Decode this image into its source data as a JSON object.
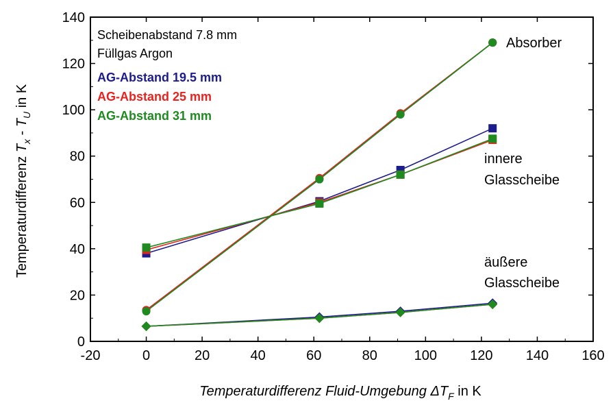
{
  "chart_data": {
    "type": "scatter",
    "xlabel": {
      "prefix": "Temperaturdifferenz Fluid-Umgebung ",
      "symbol": "ΔT",
      "sub": "F",
      "suffix": " in K"
    },
    "ylabel": {
      "prefix": "Temperaturdifferenz ",
      "sym1": "T",
      "sub1": "x",
      "mid": " - ",
      "sym2": "T",
      "sub2": "U",
      "suffix": " in K"
    },
    "xlim": [
      -20,
      160
    ],
    "ylim": [
      0,
      140
    ],
    "xticks": [
      "-20",
      "0",
      "20",
      "40",
      "60",
      "80",
      "100",
      "120",
      "140",
      "160"
    ],
    "yticks": [
      "0",
      "20",
      "40",
      "60",
      "80",
      "100",
      "120",
      "140"
    ],
    "grid": false,
    "annotations": [
      "Scheibenabstand 7.8 mm",
      "Füllgas Argon"
    ],
    "legend": [
      {
        "name": "AG-Abstand 19.5 mm",
        "color": "#1c1c8c"
      },
      {
        "name": "AG-Abstand 25 mm",
        "color": "#e8231e"
      },
      {
        "name": "AG-Abstand 31 mm",
        "color": "#1f8a1f"
      }
    ],
    "curve_labels": {
      "absorber": "Absorber",
      "inner": [
        "innere",
        "Glasscheibe"
      ],
      "outer": [
        "äußere",
        "Glasscheibe"
      ]
    },
    "groups": [
      {
        "group": "Absorber",
        "marker": "circle",
        "series": [
          {
            "name": "AG-Abstand 19.5 mm",
            "x": [
              0,
              62,
              91,
              124
            ],
            "y": [
              13.5,
              70,
              98,
              129
            ]
          },
          {
            "name": "AG-Abstand 25 mm",
            "x": [
              0,
              62,
              91,
              124
            ],
            "y": [
              13.5,
              70.5,
              98.5,
              129
            ]
          },
          {
            "name": "AG-Abstand 31 mm",
            "x": [
              0,
              62,
              91,
              124
            ],
            "y": [
              13,
              70,
              98,
              129
            ]
          }
        ]
      },
      {
        "group": "innere Glasscheibe",
        "marker": "square",
        "series": [
          {
            "name": "AG-Abstand 19.5 mm",
            "x": [
              0,
              62,
              91,
              124
            ],
            "y": [
              38,
              60.5,
              74,
              92
            ]
          },
          {
            "name": "AG-Abstand 25 mm",
            "x": [
              0,
              62,
              91,
              124
            ],
            "y": [
              39.5,
              60,
              72,
              87
            ]
          },
          {
            "name": "AG-Abstand 31 mm",
            "x": [
              0,
              62,
              91,
              124
            ],
            "y": [
              40.5,
              59.5,
              72,
              87.5
            ]
          }
        ]
      },
      {
        "group": "äußere Glasscheibe",
        "marker": "diamond",
        "series": [
          {
            "name": "AG-Abstand 19.5 mm",
            "x": [
              0,
              62,
              91,
              124
            ],
            "y": [
              6.5,
              10.5,
              13,
              16.5
            ]
          },
          {
            "name": "AG-Abstand 25 mm",
            "x": [
              0,
              62,
              91,
              124
            ],
            "y": [
              6.5,
              10,
              12.5,
              16
            ]
          },
          {
            "name": "AG-Abstand 31 mm",
            "x": [
              0,
              62,
              91,
              124
            ],
            "y": [
              6.5,
              10,
              12.5,
              16
            ]
          }
        ]
      }
    ]
  }
}
